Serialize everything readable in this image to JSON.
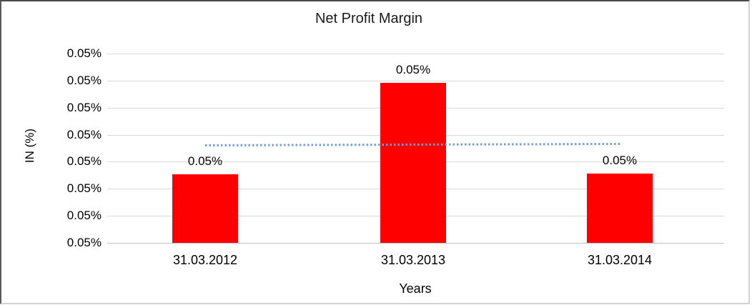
{
  "chart_data": {
    "type": "bar",
    "title": "Net Profit Margin",
    "xlabel": "Years",
    "ylabel": "IN (%)",
    "categories": [
      "31.03.2012",
      "31.03.2013",
      "31.03.2014"
    ],
    "data_labels": [
      "0.05%",
      "0.05%",
      "0.05%"
    ],
    "series": [
      {
        "name": "Net Profit Margin",
        "values_displayed": [
          "0.05%",
          "0.05%",
          "0.05%"
        ],
        "relative_heights": [
          0.362,
          0.845,
          0.366
        ]
      }
    ],
    "y_ticks": [
      "0.05%",
      "0.05%",
      "0.05%",
      "0.05%",
      "0.05%",
      "0.05%",
      "0.05%",
      "0.05%"
    ],
    "grid": true,
    "legend": false,
    "trendline": {
      "type": "linear",
      "style": "dotted",
      "relative_y_start": 0.517,
      "relative_y_end": 0.528
    }
  },
  "colors": {
    "bar": "#FF0000",
    "trendline": "#6F9FD4",
    "gridline": "#D9D9D9",
    "axis_line": "#C0C0C0",
    "text": "#000000",
    "background": "#FFFFFF"
  }
}
